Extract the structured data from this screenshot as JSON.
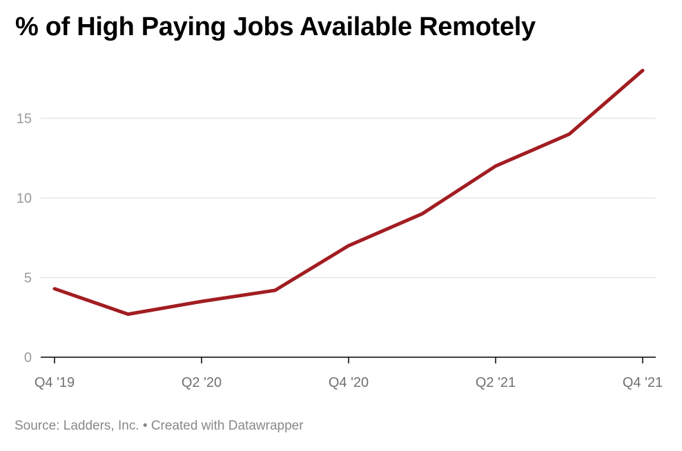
{
  "title": "% of High Paying Jobs Available Remotely",
  "footer": {
    "source": "Source: Ladders, Inc.",
    "separator": "•",
    "credit": "Created with Datawrapper"
  },
  "colors": {
    "line": "#a11d21",
    "grid": "#e5e5e5",
    "axis": "#000000",
    "tick_label": "#9a9a9a"
  },
  "chart_data": {
    "type": "line",
    "title": "% of High Paying Jobs Available Remotely",
    "xlabel": "",
    "ylabel": "",
    "x": [
      "Q4 '19",
      "Q1 '20",
      "Q2 '20",
      "Q3 '20",
      "Q4 '20",
      "Q1 '21",
      "Q2 '21",
      "Q3 '21",
      "Q4 '21"
    ],
    "series": [
      {
        "name": "% of high paying jobs available remotely",
        "values": [
          4.3,
          2.7,
          3.5,
          4.2,
          7.0,
          9.0,
          12.0,
          14.0,
          18.0
        ],
        "color": "#a11d21"
      }
    ],
    "x_tick_labels": [
      "Q4 '19",
      "Q2 '20",
      "Q4 '20",
      "Q2 '21",
      "Q4 '21"
    ],
    "y_ticks": [
      0,
      5,
      10,
      15
    ],
    "ylim": [
      0,
      18
    ],
    "grid": true,
    "legend": "none",
    "source": "Source: Ladders, Inc. • Created with Datawrapper"
  }
}
